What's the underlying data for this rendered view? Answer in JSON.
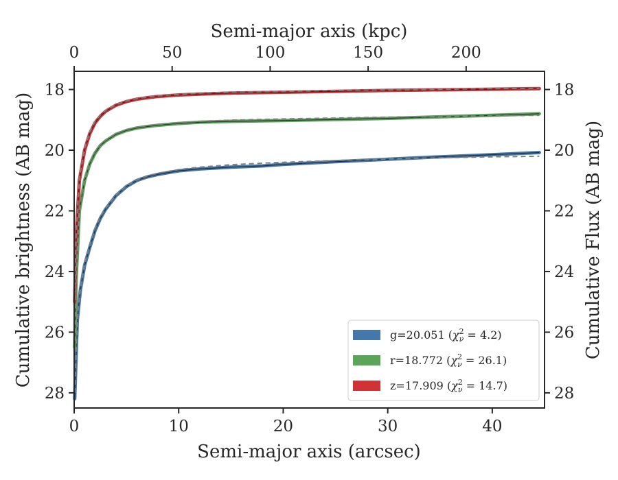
{
  "chart_data": {
    "type": "line",
    "title": "",
    "xlabel": "Semi-major axis (arcsec)",
    "ylabel": "Cumulative brightness (AB mag)",
    "x2label": "Semi-major axis (kpc)",
    "y2label": "Cumulative Flux (AB mag)",
    "xlim": [
      0,
      45
    ],
    "ylim": [
      28.5,
      17.4
    ],
    "y_inverted": true,
    "x2lim": [
      0,
      240
    ],
    "xticks": [
      0,
      10,
      20,
      30,
      40
    ],
    "yticks": [
      18,
      20,
      22,
      24,
      26,
      28
    ],
    "x2ticks": [
      0,
      50,
      100,
      150,
      200
    ],
    "xtick_labels": [
      "0",
      "10",
      "20",
      "30",
      "40"
    ],
    "ytick_labels": [
      "18",
      "20",
      "22",
      "24",
      "26",
      "28"
    ],
    "x2tick_labels": [
      "0",
      "50",
      "100",
      "150",
      "200"
    ],
    "grid": false,
    "legend_position": "lower-right",
    "series": [
      {
        "name": "g=20.051 (χ²ᵥ = 4.2)",
        "label_prefix": "g=20.051 (",
        "label_chi": "χ",
        "label_sup": "2",
        "label_sub": "ν",
        "label_suffix": " = 4.2)",
        "color": "#4477aa",
        "x": [
          0.05,
          0.3,
          0.6,
          1.0,
          1.5,
          2,
          2.5,
          3,
          4,
          5,
          6,
          7,
          8,
          10,
          12,
          15,
          18,
          20,
          25,
          30,
          35,
          40,
          44.5
        ],
        "y": [
          28.2,
          25.6,
          24.6,
          23.8,
          23.2,
          22.65,
          22.25,
          21.95,
          21.5,
          21.2,
          21.0,
          20.88,
          20.8,
          20.68,
          20.62,
          20.56,
          20.52,
          20.47,
          20.38,
          20.3,
          20.22,
          20.15,
          20.08
        ]
      },
      {
        "name": "r=18.772 (χ²ᵥ = 26.1)",
        "label_prefix": "r=18.772 (",
        "label_chi": "χ",
        "label_sup": "2",
        "label_sub": "ν",
        "label_suffix": " = 26.1)",
        "color": "#5aa55a",
        "x": [
          0.05,
          0.2,
          0.5,
          1.0,
          1.5,
          2,
          2.5,
          3,
          4,
          5,
          6,
          7,
          8,
          10,
          12,
          15,
          20,
          25,
          30,
          35,
          40,
          44.5
        ],
        "y": [
          26.5,
          24.2,
          22.0,
          21.0,
          20.45,
          20.1,
          19.85,
          19.7,
          19.48,
          19.35,
          19.27,
          19.22,
          19.18,
          19.12,
          19.08,
          19.05,
          19.02,
          18.99,
          18.95,
          18.9,
          18.85,
          18.8
        ]
      },
      {
        "name": "z=17.909 (χ²ᵥ = 14.7)",
        "label_prefix": "z=17.909 (",
        "label_chi": "χ",
        "label_sup": "2",
        "label_sub": "ν",
        "label_suffix": " = 14.7)",
        "color": "#d13236",
        "x": [
          0.05,
          0.2,
          0.5,
          1.0,
          1.5,
          2,
          2.5,
          3,
          4,
          5,
          6,
          7,
          8,
          10,
          12,
          15,
          20,
          25,
          30,
          35,
          40,
          44.5
        ],
        "y": [
          25.0,
          22.8,
          21.0,
          20.0,
          19.45,
          19.1,
          18.88,
          18.72,
          18.52,
          18.4,
          18.32,
          18.27,
          18.23,
          18.18,
          18.15,
          18.12,
          18.09,
          18.06,
          18.03,
          18.01,
          17.99,
          17.97
        ]
      }
    ],
    "model_curves": [
      {
        "name": "g-model",
        "color": "#808080",
        "x": [
          0.05,
          0.3,
          0.6,
          1.0,
          1.5,
          2,
          2.5,
          3,
          4,
          5,
          6,
          7,
          8,
          10,
          12,
          15,
          18,
          20,
          25,
          30,
          35,
          40,
          44.5
        ],
        "y": [
          28.0,
          25.5,
          24.55,
          23.75,
          23.15,
          22.6,
          22.2,
          21.92,
          21.48,
          21.18,
          20.98,
          20.85,
          20.76,
          20.64,
          20.56,
          20.48,
          20.43,
          20.4,
          20.34,
          20.29,
          20.25,
          20.22,
          20.2
        ]
      },
      {
        "name": "r-model",
        "color": "#808080",
        "x": [
          0.05,
          0.2,
          0.5,
          1.0,
          1.5,
          2,
          2.5,
          3,
          4,
          5,
          6,
          7,
          8,
          10,
          12,
          15,
          20,
          25,
          30,
          35,
          40,
          44.5
        ],
        "y": [
          26.3,
          24.0,
          21.9,
          20.95,
          20.4,
          20.05,
          19.82,
          19.67,
          19.45,
          19.32,
          19.24,
          19.19,
          19.15,
          19.09,
          19.05,
          19.01,
          18.97,
          18.94,
          18.91,
          18.89,
          18.87,
          18.85
        ]
      },
      {
        "name": "z-model",
        "color": "#808080",
        "x": [
          0.05,
          0.2,
          0.5,
          1.0,
          1.5,
          2,
          2.5,
          3,
          4,
          5,
          6,
          7,
          8,
          10,
          12,
          15,
          20,
          25,
          30,
          35,
          40,
          44.5
        ],
        "y": [
          24.8,
          22.6,
          20.9,
          19.95,
          19.4,
          19.05,
          18.84,
          18.69,
          18.5,
          18.38,
          18.3,
          18.25,
          18.21,
          18.16,
          18.12,
          18.09,
          18.06,
          18.03,
          18.01,
          17.99,
          17.97,
          17.96
        ]
      }
    ]
  }
}
